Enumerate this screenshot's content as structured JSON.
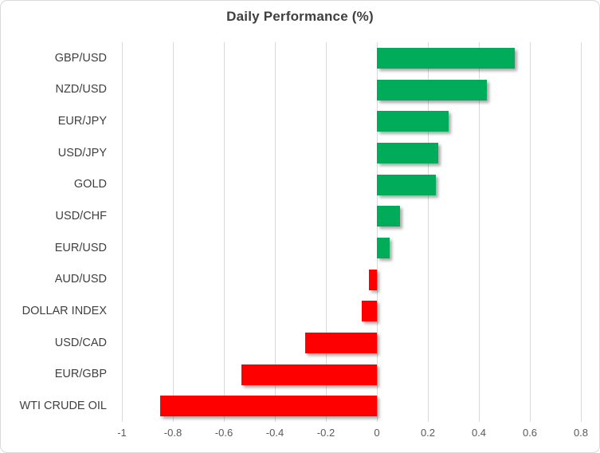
{
  "chart_data": {
    "type": "bar",
    "orientation": "horizontal",
    "title": "Daily Performance (%)",
    "categories": [
      "GBP/USD",
      "NZD/USD",
      "EUR/JPY",
      "USD/JPY",
      "GOLD",
      "USD/CHF",
      "EUR/USD",
      "AUD/USD",
      "DOLLAR INDEX",
      "USD/CAD",
      "EUR/GBP",
      "WTI CRUDE OIL"
    ],
    "values": [
      0.54,
      0.43,
      0.28,
      0.24,
      0.23,
      0.09,
      0.05,
      -0.03,
      -0.06,
      -0.28,
      -0.53,
      -0.85
    ],
    "xlabel": "",
    "ylabel": "",
    "xlim": [
      -1,
      0.8
    ],
    "xticks": [
      -1,
      -0.8,
      -0.6,
      -0.4,
      -0.2,
      0,
      0.2,
      0.4,
      0.6,
      0.8
    ],
    "xtick_labels": [
      "-1",
      "-0.8",
      "-0.6",
      "-0.4",
      "-0.2",
      "0",
      "0.2",
      "0.4",
      "0.6",
      "0.8"
    ],
    "grid": "vertical-only",
    "legend": "none",
    "colors": {
      "positive_bar": "#00AC59",
      "negative_bar": "#FF0000",
      "gridline": "#D9D9D9",
      "title_text": "#3F3F3F",
      "category_text": "#404040",
      "tick_text": "#595959",
      "chart_border": "#D9D9D9",
      "background": "#FFFFFF"
    }
  }
}
